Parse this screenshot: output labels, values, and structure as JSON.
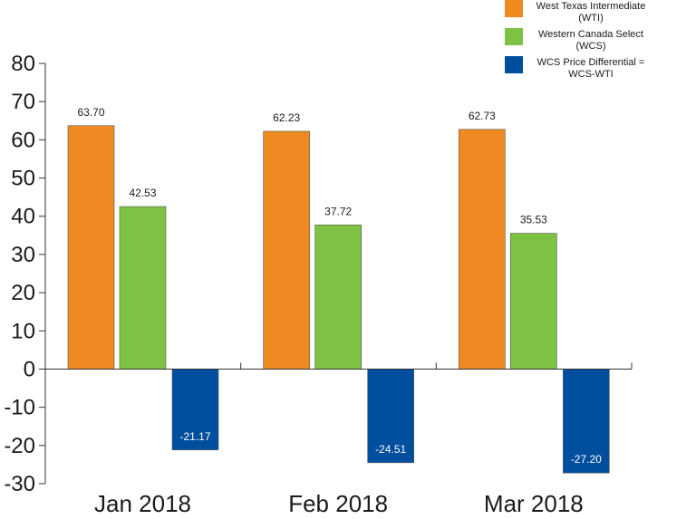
{
  "chart_data": {
    "type": "bar",
    "categories": [
      "Jan 2018",
      "Feb 2018",
      "Mar 2018"
    ],
    "series": [
      {
        "name": "West Texas Intermediate (WTI)",
        "values": [
          63.7,
          62.23,
          62.73
        ],
        "color": "#ef8a22",
        "legend_lines": [
          "West Texas Intermediate",
          "(WTI)"
        ]
      },
      {
        "name": "Western Canada Select (WCS)",
        "values": [
          42.53,
          37.72,
          35.53
        ],
        "color": "#7dc242",
        "legend_lines": [
          "Western Canada Select",
          "(WCS)"
        ]
      },
      {
        "name": "WCS Price Differential = WCS-WTI",
        "values": [
          -21.17,
          -24.51,
          -27.2
        ],
        "color": "#004f9e",
        "legend_lines": [
          "WCS Price Differential =",
          "WCS-WTI"
        ]
      }
    ],
    "data_labels": [
      [
        "63.70",
        "62.23",
        "62.73"
      ],
      [
        "42.53",
        "37.72",
        "35.53"
      ],
      [
        "-21.17",
        "-24.51",
        "-27.20"
      ]
    ],
    "yticks": [
      "80",
      "70",
      "60",
      "50",
      "40",
      "30",
      "20",
      "10",
      "0",
      "-10",
      "-20",
      "-30"
    ],
    "ytick_values": [
      80,
      70,
      60,
      50,
      40,
      30,
      20,
      10,
      0,
      -10,
      -20,
      -30
    ],
    "ylim": [
      -30,
      80
    ],
    "title": "",
    "xlabel": "",
    "ylabel": "",
    "grid": false,
    "legend_position": "top-right"
  }
}
